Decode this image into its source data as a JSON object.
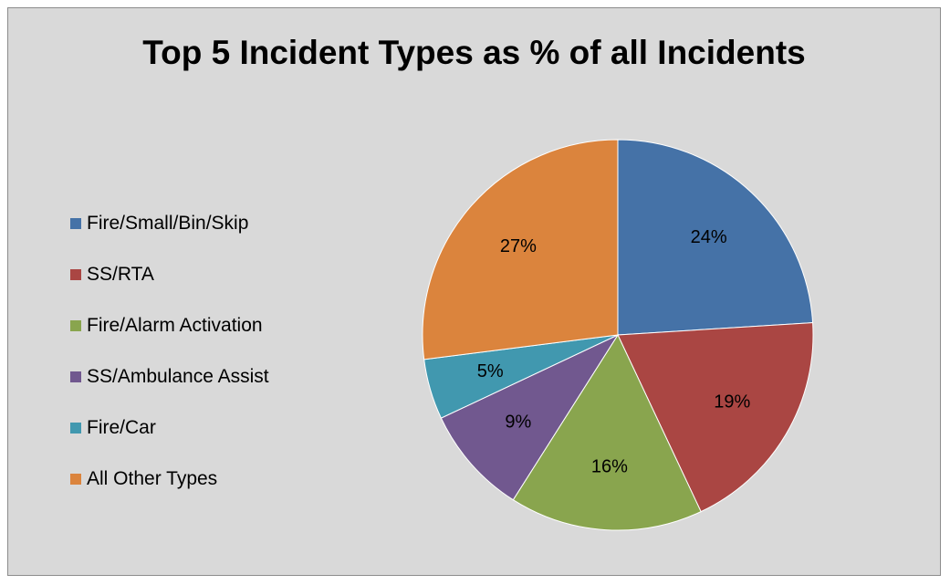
{
  "chart_data": {
    "type": "pie",
    "title": "Top 5 Incident Types as % of all Incidents",
    "categories": [
      "Fire/Small/Bin/Skip",
      "SS/RTA",
      "Fire/Alarm Activation",
      "SS/Ambulance Assist",
      "Fire/Car",
      "All Other Types"
    ],
    "values": [
      24,
      19,
      16,
      9,
      5,
      27
    ],
    "labels": [
      "24%",
      "19%",
      "16%",
      "9%",
      "5%",
      "27%"
    ],
    "colors": [
      "#4572a7",
      "#aa4643",
      "#89a54e",
      "#71588f",
      "#4198af",
      "#db843d"
    ],
    "legend_position": "left"
  },
  "background_color": "#d9d9d9"
}
